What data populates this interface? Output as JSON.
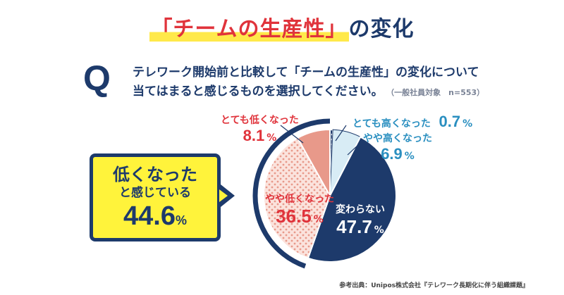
{
  "title": {
    "highlight": "「チームの生産性」",
    "rest": "の変化"
  },
  "question": {
    "mark": "Q",
    "line1": "テレワーク開始前と比較して「チームの生産性」の変化について",
    "line2": "当てはまると感じるものを選択してください。",
    "note": "（一般社員対象　n=553）"
  },
  "callout": {
    "line1": "低くなった",
    "line2": "と感じている",
    "value": "44.6",
    "unit": "%"
  },
  "source": "参考出典：Unipos株式会社『テレワーク長期化に伴う組織課題』",
  "colors": {
    "navy": "#1d3a6b",
    "red": "#e0333b",
    "salmon": "#e8998a",
    "pink_bg": "#fbe3dd",
    "light_blue_bg": "#d8ecf5",
    "blue_text": "#2a8fc0",
    "yellow": "#fff33b"
  },
  "chart_data": {
    "type": "pie",
    "unit": "%",
    "slices": [
      {
        "label": "とても高くなった",
        "value": 0.7,
        "display": "0.7"
      },
      {
        "label": "やや高くなった",
        "value": 6.9,
        "display": "6.9"
      },
      {
        "label": "変わらない",
        "value": 47.7,
        "display": "47.7"
      },
      {
        "label": "やや低くなった",
        "value": 36.5,
        "display": "36.5"
      },
      {
        "label": "とても低くなった",
        "value": 8.1,
        "display": "8.1"
      }
    ],
    "start_angle_deg": 0,
    "direction": "clockwise"
  }
}
